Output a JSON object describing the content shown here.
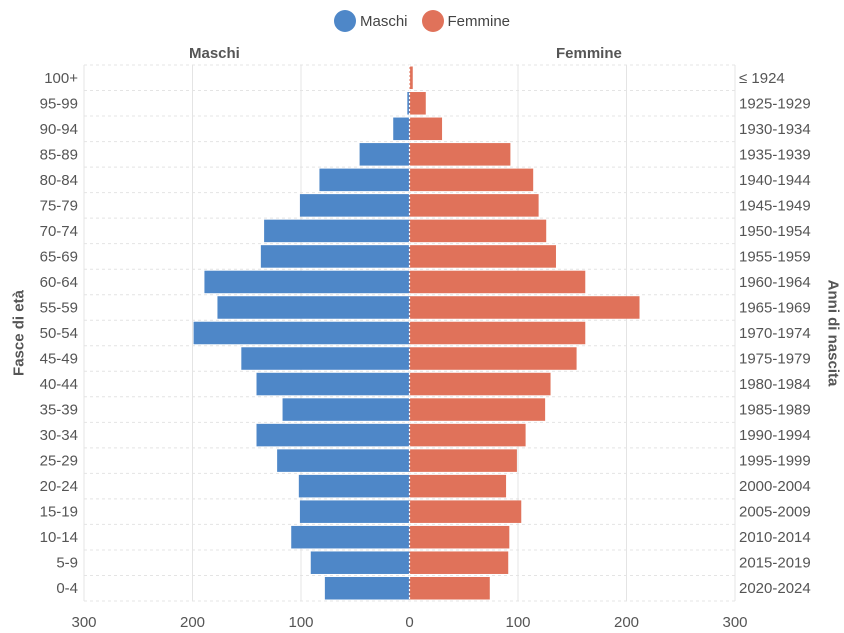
{
  "legend": {
    "male_label": "Maschi",
    "female_label": "Femmine"
  },
  "colors": {
    "male": "#4e87c8",
    "female": "#e0725a",
    "grid": "#e4e4e4",
    "center": "#ffffff",
    "text": "#555555"
  },
  "chart_data": {
    "type": "bar",
    "orientation": "horizontal",
    "subtype": "population-pyramid",
    "left_title": "Maschi",
    "right_title": "Femmine",
    "ylabel": "Fasce di età",
    "y2label": "Anni di nascita",
    "xlim": [
      -300,
      300
    ],
    "x_ticks": [
      -300,
      -200,
      -100,
      0,
      100,
      200,
      300
    ],
    "x_tick_labels": [
      "300",
      "200",
      "100",
      "0",
      "100",
      "200",
      "300"
    ],
    "grid": true,
    "legend_position": "top-center",
    "categories": [
      "100+",
      "95-99",
      "90-94",
      "85-89",
      "80-84",
      "75-79",
      "70-74",
      "65-69",
      "60-64",
      "55-59",
      "50-54",
      "45-49",
      "40-44",
      "35-39",
      "30-34",
      "25-29",
      "20-24",
      "15-19",
      "10-14",
      "5-9",
      "0-4"
    ],
    "birth_years": [
      "≤ 1924",
      "1925-1929",
      "1930-1934",
      "1935-1939",
      "1940-1944",
      "1945-1949",
      "1950-1954",
      "1955-1959",
      "1960-1964",
      "1965-1969",
      "1970-1974",
      "1975-1979",
      "1980-1984",
      "1985-1989",
      "1990-1994",
      "1995-1999",
      "2000-2004",
      "2005-2009",
      "2010-2014",
      "2015-2019",
      "2020-2024"
    ],
    "series": [
      {
        "name": "Maschi",
        "values": [
          0,
          2,
          15,
          46,
          83,
          101,
          134,
          137,
          189,
          177,
          199,
          155,
          141,
          117,
          141,
          122,
          102,
          101,
          109,
          91,
          78
        ]
      },
      {
        "name": "Femmine",
        "values": [
          3,
          15,
          30,
          93,
          114,
          119,
          126,
          135,
          162,
          212,
          162,
          154,
          130,
          125,
          107,
          99,
          89,
          103,
          92,
          91,
          74
        ]
      }
    ]
  }
}
